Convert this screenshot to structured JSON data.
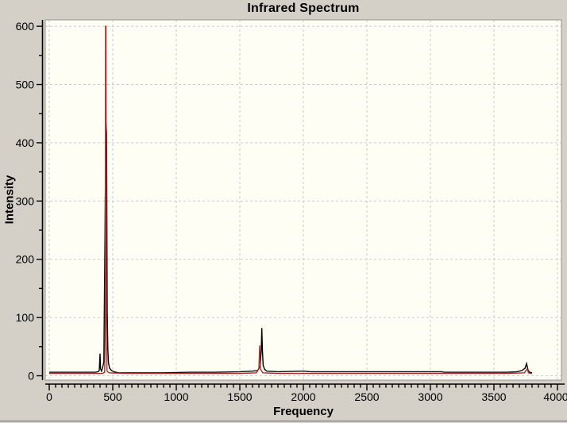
{
  "window": {
    "background_color": "#d4d0c8",
    "bottom_border_color": "#6e6e6e"
  },
  "chart_data": {
    "type": "line",
    "title": "Infrared Spectrum",
    "xlabel": "Frequency",
    "ylabel": "Intensity",
    "xlim": [
      0,
      4000
    ],
    "ylim": [
      0,
      600
    ],
    "x_ticks": [
      0,
      500,
      1000,
      1500,
      2000,
      2500,
      3000,
      3500,
      4000
    ],
    "y_ticks": [
      0,
      100,
      200,
      300,
      400,
      500,
      600
    ],
    "x_minor_step": 50,
    "y_minor_step": 50,
    "grid": true,
    "legend": "none",
    "plot_background": "#fffef4",
    "grid_color": "#c3cfc9",
    "axis_color": "#000000",
    "series": [
      {
        "name": "spectrum-black",
        "color": "#000000",
        "points": [
          [
            0,
            6
          ],
          [
            150,
            6
          ],
          [
            300,
            6
          ],
          [
            360,
            6
          ],
          [
            385,
            7
          ],
          [
            394,
            9
          ],
          [
            400,
            38
          ],
          [
            404,
            12
          ],
          [
            412,
            8
          ],
          [
            420,
            14
          ],
          [
            430,
            24
          ],
          [
            446,
            434
          ],
          [
            451,
            418
          ],
          [
            456,
            110
          ],
          [
            461,
            45
          ],
          [
            466,
            22
          ],
          [
            475,
            13
          ],
          [
            490,
            9
          ],
          [
            510,
            7
          ],
          [
            545,
            5
          ],
          [
            700,
            5
          ],
          [
            900,
            5
          ],
          [
            1100,
            6
          ],
          [
            1300,
            6
          ],
          [
            1500,
            7
          ],
          [
            1600,
            8
          ],
          [
            1640,
            9
          ],
          [
            1660,
            16
          ],
          [
            1669,
            45
          ],
          [
            1673,
            82
          ],
          [
            1678,
            42
          ],
          [
            1684,
            18
          ],
          [
            1695,
            11
          ],
          [
            1712,
            8
          ],
          [
            1800,
            7
          ],
          [
            2000,
            8
          ],
          [
            2060,
            7
          ],
          [
            2400,
            7
          ],
          [
            2800,
            7
          ],
          [
            3090,
            7
          ],
          [
            3110,
            6
          ],
          [
            3400,
            6
          ],
          [
            3600,
            6
          ],
          [
            3680,
            7
          ],
          [
            3720,
            9
          ],
          [
            3745,
            13
          ],
          [
            3757,
            21
          ],
          [
            3768,
            10
          ],
          [
            3780,
            6
          ],
          [
            3800,
            5
          ]
        ]
      },
      {
        "name": "spectrum-red",
        "color": "#a83030",
        "points": [
          [
            0,
            4
          ],
          [
            300,
            4
          ],
          [
            420,
            4
          ],
          [
            436,
            6
          ],
          [
            440,
            80
          ],
          [
            443,
            600
          ],
          [
            447,
            600
          ],
          [
            450,
            60
          ],
          [
            455,
            8
          ],
          [
            470,
            5
          ],
          [
            600,
            4
          ],
          [
            1000,
            4
          ],
          [
            1500,
            4
          ],
          [
            1630,
            5
          ],
          [
            1650,
            12
          ],
          [
            1656,
            52
          ],
          [
            1662,
            12
          ],
          [
            1680,
            5
          ],
          [
            1800,
            4
          ],
          [
            2500,
            4
          ],
          [
            3200,
            4
          ],
          [
            3600,
            4
          ],
          [
            3740,
            5
          ],
          [
            3762,
            12
          ],
          [
            3772,
            5
          ],
          [
            3790,
            4
          ],
          [
            3800,
            4
          ]
        ]
      }
    ],
    "peaks": [
      {
        "frequency": 450,
        "intensity_black": 434,
        "intensity_red": 600
      },
      {
        "frequency": 1675,
        "intensity_black": 82,
        "intensity_red": 52
      },
      {
        "frequency": 3760,
        "intensity_black": 21,
        "intensity_red": 12
      }
    ]
  }
}
